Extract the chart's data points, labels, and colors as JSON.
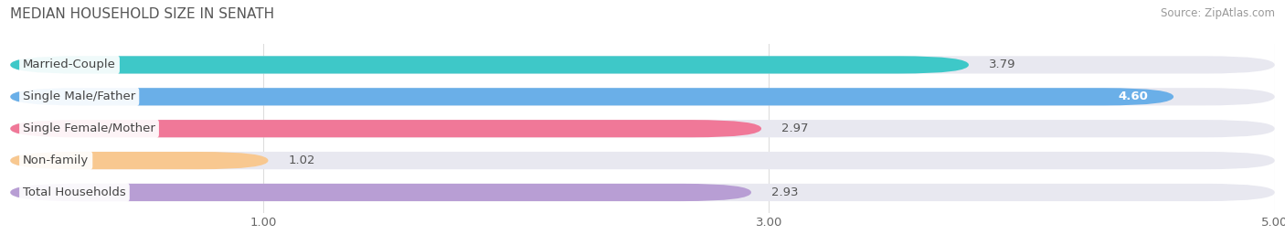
{
  "title": "MEDIAN HOUSEHOLD SIZE IN SENATH",
  "source": "Source: ZipAtlas.com",
  "categories": [
    "Married-Couple",
    "Single Male/Father",
    "Single Female/Mother",
    "Non-family",
    "Total Households"
  ],
  "values": [
    3.79,
    4.6,
    2.97,
    1.02,
    2.93
  ],
  "bar_colors": [
    "#3ec8c8",
    "#6aafe8",
    "#f07898",
    "#f8c890",
    "#b89ed4"
  ],
  "bar_bg_color": "#e8e8f0",
  "value_inside_color": "white",
  "value_outside_color": "#555555",
  "label_bg_color": "white",
  "label_text_color": "#444444",
  "title_color": "#555555",
  "source_color": "#999999",
  "grid_color": "#dddddd",
  "fig_bg_color": "white",
  "xlim": [
    0,
    5.0
  ],
  "xticks": [
    1.0,
    3.0,
    5.0
  ],
  "xtick_labels": [
    "1.00",
    "3.00",
    "5.00"
  ],
  "label_fontsize": 9.5,
  "value_fontsize": 9.5,
  "title_fontsize": 11,
  "source_fontsize": 8.5,
  "bar_height": 0.55,
  "value_inside_threshold": 4.3
}
